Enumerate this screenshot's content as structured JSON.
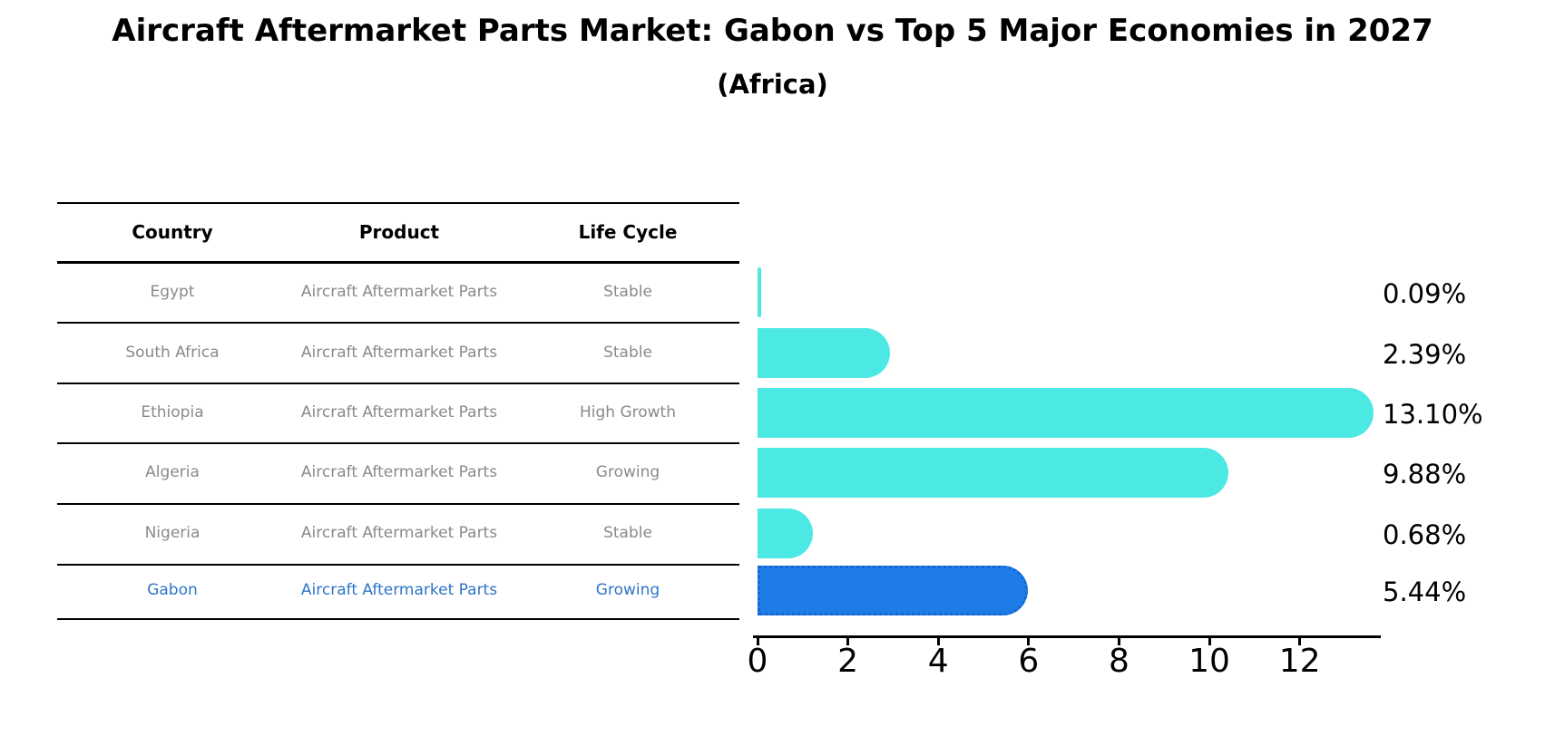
{
  "title": "Aircraft Aftermarket Parts Market: Gabon vs Top 5 Major Economies in 2027",
  "subtitle": "(Africa)",
  "table": {
    "headers": [
      "Country",
      "Product",
      "Life Cycle"
    ]
  },
  "chart_data": {
    "type": "bar",
    "orientation": "horizontal",
    "title": "Aircraft Aftermarket Parts Market: Gabon vs Top 5 Major Economies in 2027 (Africa)",
    "rows": [
      {
        "country": "Egypt",
        "product": "Aircraft Aftermarket Parts",
        "life_cycle": "Stable",
        "value": 0.09,
        "display": "0.09%",
        "highlight": false
      },
      {
        "country": "South Africa",
        "product": "Aircraft Aftermarket Parts",
        "life_cycle": "Stable",
        "value": 2.39,
        "display": "2.39%",
        "highlight": false
      },
      {
        "country": "Ethiopia",
        "product": "Aircraft Aftermarket Parts",
        "life_cycle": "High Growth",
        "value": 13.1,
        "display": "13.10%",
        "highlight": false
      },
      {
        "country": "Algeria",
        "product": "Aircraft Aftermarket Parts",
        "life_cycle": "Growing",
        "value": 9.88,
        "display": "9.88%",
        "highlight": false
      },
      {
        "country": "Nigeria",
        "product": "Aircraft Aftermarket Parts",
        "life_cycle": "Stable",
        "value": 0.68,
        "display": "0.68%",
        "highlight": false
      },
      {
        "country": "Gabon",
        "product": "Aircraft Aftermarket Parts",
        "life_cycle": "Growing",
        "value": 5.44,
        "display": "5.44%",
        "highlight": true
      }
    ],
    "x_ticks": [
      "0",
      "2",
      "4",
      "6",
      "8",
      "10",
      "12"
    ],
    "xlim": [
      0,
      13.8
    ],
    "grid": false,
    "legend": "none",
    "colors": {
      "bar": "#4be8e4",
      "highlight_bar": "#1e7ce8",
      "highlight_border": "#1565cd",
      "highlight_text": "#2e75c8",
      "row_text": "#8a8a8a",
      "axis_text": "#000000"
    }
  }
}
